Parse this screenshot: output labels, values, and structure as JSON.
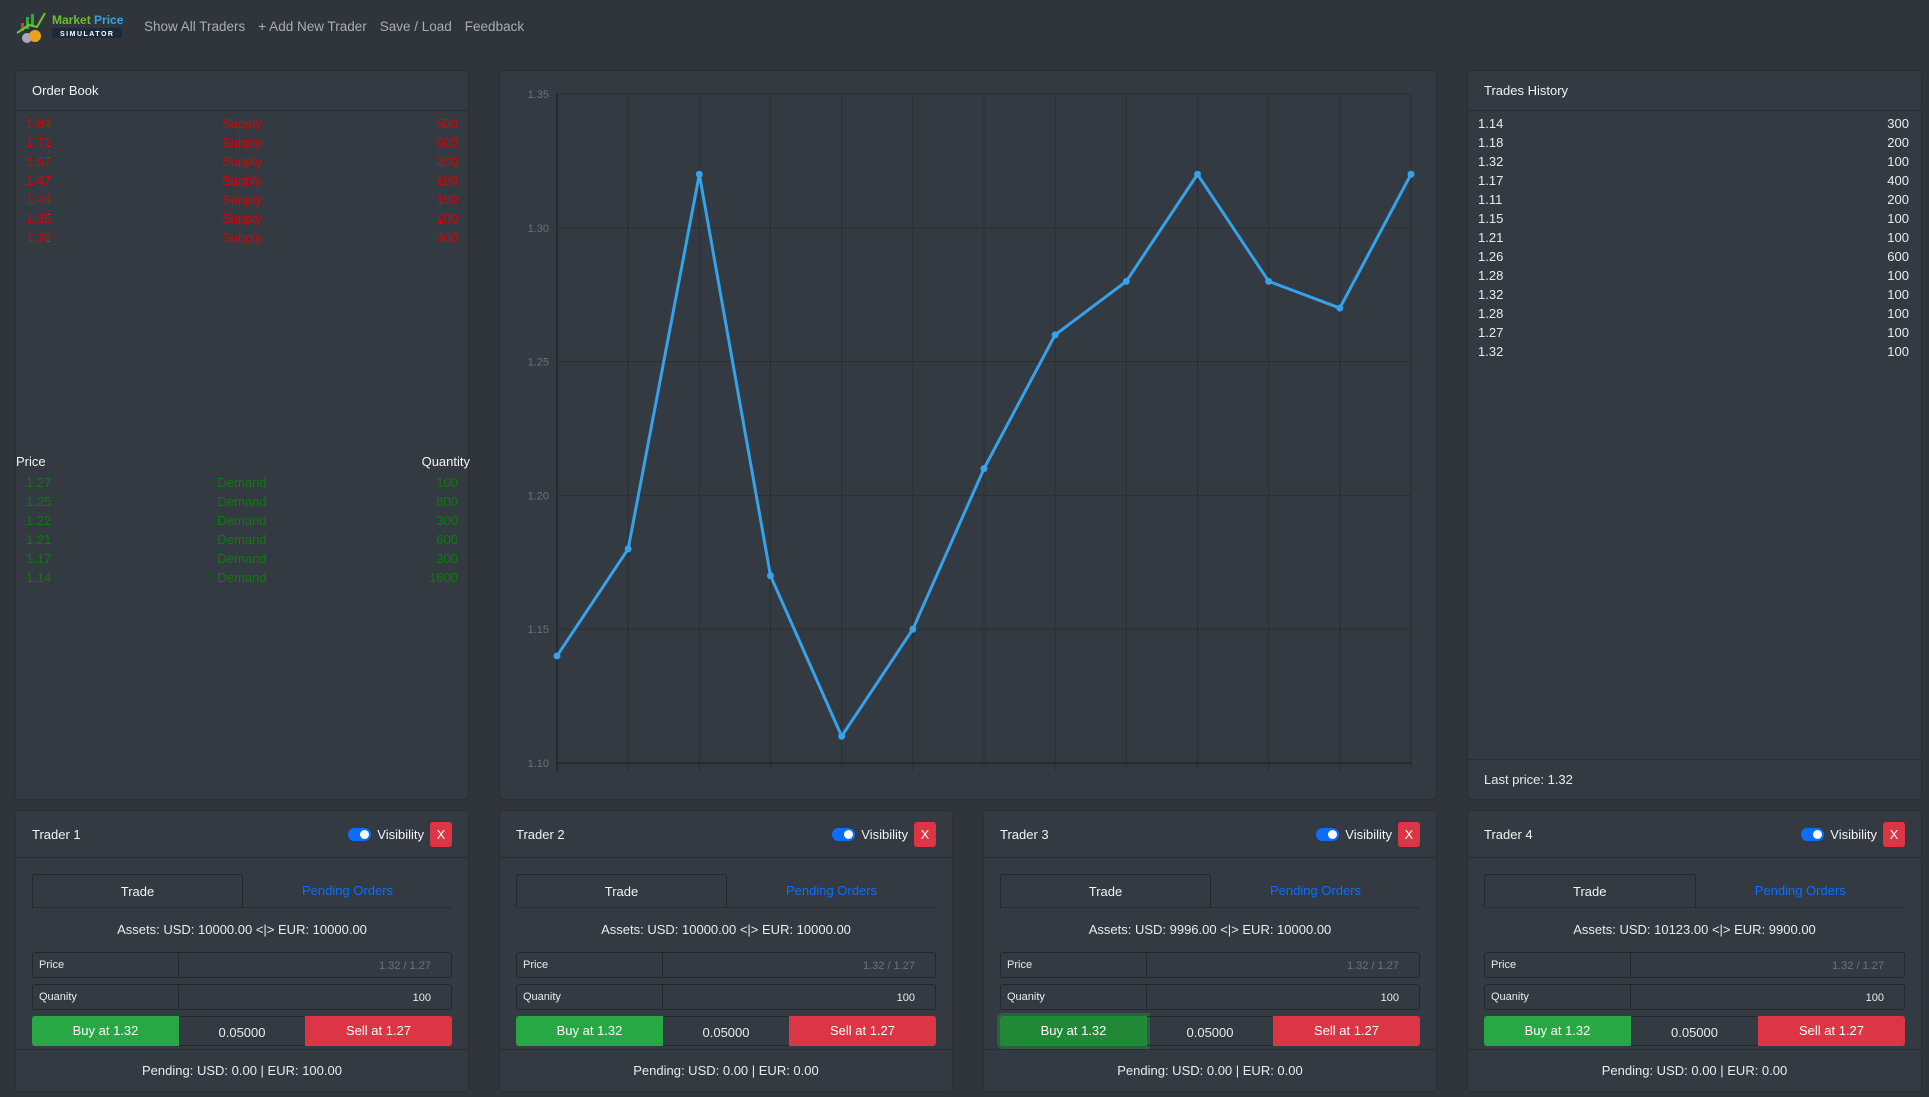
{
  "nav": {
    "logo_text": "Market Price SIMULATOR",
    "links": [
      "Show All Traders",
      "+ Add New Trader",
      "Save / Load",
      "Feedback"
    ]
  },
  "order_book": {
    "title": "Order Book",
    "price_header": "Price",
    "quantity_header": "Quantity",
    "supply": [
      [
        "1.84",
        "Supply",
        "500"
      ],
      [
        "1.71",
        "Supply",
        "600"
      ],
      [
        "1.57",
        "Supply",
        "200"
      ],
      [
        "1.47",
        "Supply",
        "100"
      ],
      [
        "1.44",
        "Supply",
        "100"
      ],
      [
        "1.35",
        "Supply",
        "100"
      ],
      [
        "1.32",
        "Supply",
        "300"
      ]
    ],
    "demand": [
      [
        "1.27",
        "Demand",
        "100"
      ],
      [
        "1.25",
        "Demand",
        "800"
      ],
      [
        "1.22",
        "Demand",
        "300"
      ],
      [
        "1.21",
        "Demand",
        "600"
      ],
      [
        "1.17",
        "Demand",
        "200"
      ],
      [
        "1.14",
        "Demand",
        "1600"
      ]
    ],
    "supply_color": "#e00000",
    "demand_color": "#0a7d0a"
  },
  "chart_data": {
    "type": "line",
    "x": [
      1,
      2,
      3,
      4,
      5,
      6,
      7,
      8,
      9,
      10,
      11,
      12,
      13
    ],
    "values": [
      1.14,
      1.18,
      1.32,
      1.17,
      1.11,
      1.15,
      1.21,
      1.26,
      1.28,
      1.32,
      1.28,
      1.27,
      1.32
    ],
    "ylim": [
      1.1,
      1.35
    ],
    "yticks": [
      "1.35",
      "1.30",
      "1.25",
      "1.20",
      "1.15",
      "1.10"
    ],
    "grid": true,
    "color": "#36a2eb",
    "title": "",
    "xlabel": "",
    "ylabel": ""
  },
  "trades_history": {
    "title": "Trades History",
    "rows": [
      [
        "1.14",
        "300"
      ],
      [
        "1.18",
        "200"
      ],
      [
        "1.32",
        "100"
      ],
      [
        "1.17",
        "400"
      ],
      [
        "1.11",
        "200"
      ],
      [
        "1.15",
        "100"
      ],
      [
        "1.21",
        "100"
      ],
      [
        "1.26",
        "600"
      ],
      [
        "1.28",
        "100"
      ],
      [
        "1.32",
        "100"
      ],
      [
        "1.28",
        "100"
      ],
      [
        "1.27",
        "100"
      ],
      [
        "1.32",
        "100"
      ]
    ],
    "last_price": "Last price: 1.32"
  },
  "traders": [
    {
      "name": "Trader 1",
      "visibility": "Visibility",
      "close": "X",
      "tab_trade": "Trade",
      "tab_pending": "Pending Orders",
      "assets": "Assets: USD: 10000.00 <|> EUR: 10000.00",
      "price_label": "Price",
      "price_placeholder": "1.32 / 1.27",
      "qty_label": "Quanity",
      "qty_value": "100",
      "buy": "Buy at 1.32",
      "spread": "0.05000",
      "sell": "Sell at 1.27",
      "pending": "Pending: USD: 0.00 | EUR: 100.00"
    },
    {
      "name": "Trader 2",
      "visibility": "Visibility",
      "close": "X",
      "tab_trade": "Trade",
      "tab_pending": "Pending Orders",
      "assets": "Assets: USD: 10000.00 <|> EUR: 10000.00",
      "price_label": "Price",
      "price_placeholder": "1.32 / 1.27",
      "qty_label": "Quanity",
      "qty_value": "100",
      "buy": "Buy at 1.32",
      "spread": "0.05000",
      "sell": "Sell at 1.27",
      "pending": "Pending: USD: 0.00 | EUR: 0.00"
    },
    {
      "name": "Trader 3",
      "visibility": "Visibility",
      "close": "X",
      "tab_trade": "Trade",
      "tab_pending": "Pending Orders",
      "assets": "Assets: USD: 9996.00 <|> EUR: 10000.00",
      "price_label": "Price",
      "price_placeholder": "1.32 / 1.27",
      "qty_label": "Quanity",
      "qty_value": "100",
      "buy": "Buy at 1.32",
      "spread": "0.05000",
      "sell": "Sell at 1.27",
      "pending": "Pending: USD: 0.00 | EUR: 0.00"
    },
    {
      "name": "Trader 4",
      "visibility": "Visibility",
      "close": "X",
      "tab_trade": "Trade",
      "tab_pending": "Pending Orders",
      "assets": "Assets: USD: 10123.00 <|> EUR: 9900.00",
      "price_label": "Price",
      "price_placeholder": "1.32 / 1.27",
      "qty_label": "Quanity",
      "qty_value": "100",
      "buy": "Buy at 1.32",
      "spread": "0.05000",
      "sell": "Sell at 1.27",
      "pending": "Pending: USD: 0.00 | EUR: 0.00"
    }
  ]
}
